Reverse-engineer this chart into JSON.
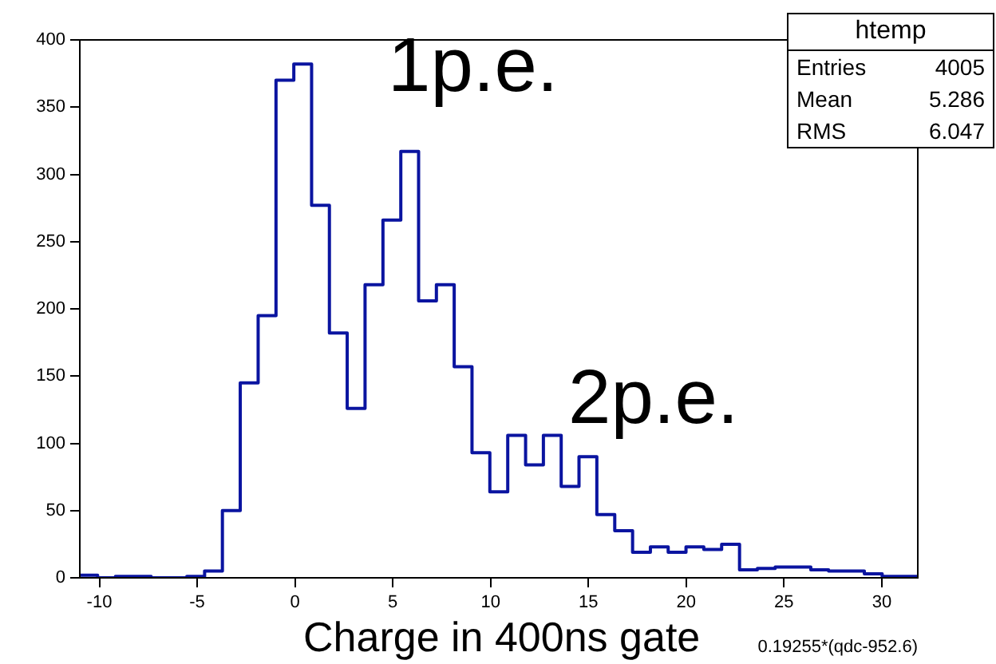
{
  "chart_data": {
    "type": "histogram",
    "xlabel": "0.19255*(qdc-952.6)",
    "bins": [
      -11,
      -10.09,
      -9.18,
      -8.27,
      -7.35,
      -6.44,
      -5.53,
      -4.62,
      -3.71,
      -2.8,
      -1.88,
      -0.97,
      -0.06,
      0.85,
      1.76,
      2.67,
      3.58,
      4.5,
      5.41,
      6.32,
      7.23,
      8.14,
      9.05,
      9.96,
      10.88,
      11.79,
      12.7,
      13.61,
      14.52,
      15.43,
      16.35,
      17.26,
      18.17,
      19.08,
      19.99,
      20.9,
      21.81,
      22.73,
      23.64,
      24.55,
      25.46,
      26.37,
      27.28,
      28.19,
      29.11,
      30.02,
      30.93,
      31.84
    ],
    "values": [
      2,
      0,
      1,
      1,
      0,
      0,
      1,
      5,
      50,
      145,
      195,
      370,
      382,
      277,
      182,
      126,
      218,
      266,
      317,
      206,
      218,
      157,
      93,
      64,
      106,
      84,
      106,
      68,
      90,
      47,
      35,
      19,
      23,
      19,
      23,
      21,
      25,
      6,
      7,
      8,
      8,
      6,
      5,
      5,
      3,
      1,
      1
    ],
    "color": "#0a14a0",
    "xlim": [
      -11,
      31.84
    ],
    "xticks": [
      -10,
      -5,
      0,
      5,
      10,
      15,
      20,
      25,
      30
    ],
    "ylim": [
      0,
      400
    ],
    "yticks": [
      0,
      50,
      100,
      150,
      200,
      250,
      300,
      350,
      400
    ],
    "grid": false,
    "annotations": [
      "1p.e.",
      "2p.e.",
      "Charge in 400ns gate",
      "htemp",
      "Entries 4005",
      "Mean 5.286",
      "RMS 6.047"
    ]
  }
}
